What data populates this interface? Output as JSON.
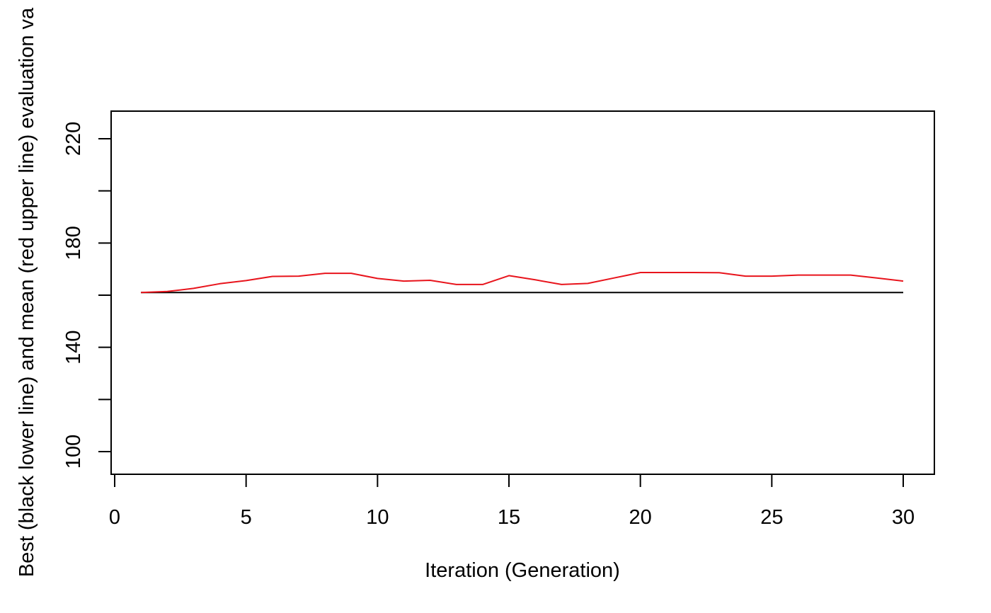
{
  "chart_data": {
    "type": "line",
    "title": "",
    "xlabel": "Iteration (Generation)",
    "ylabel": "Best (black lower line) and mean (red upper line) evaluation va",
    "xlim": [
      0,
      31
    ],
    "ylim": [
      92,
      231
    ],
    "x_ticks": [
      0,
      5,
      10,
      15,
      20,
      25,
      30
    ],
    "x_tick_labels": [
      "0",
      "5",
      "10",
      "15",
      "20",
      "25",
      "30"
    ],
    "y_ticks": [
      100,
      120,
      140,
      160,
      180,
      200,
      220
    ],
    "y_tick_labels": [
      "100",
      "",
      "140",
      "",
      "180",
      "",
      "220"
    ],
    "grid": false,
    "legend": "none",
    "x": [
      1,
      2,
      3,
      4,
      5,
      6,
      7,
      8,
      9,
      10,
      11,
      12,
      13,
      14,
      15,
      16,
      17,
      18,
      19,
      20,
      21,
      22,
      23,
      24,
      25,
      26,
      27,
      28,
      29,
      30
    ],
    "series": [
      {
        "color": "#000000",
        "values": [
          161,
          161,
          161,
          161,
          161,
          161,
          161,
          161,
          161,
          161,
          161,
          161,
          161,
          161,
          161,
          161,
          161,
          161,
          161,
          161,
          161,
          161,
          161,
          161,
          161,
          161,
          161,
          161,
          161,
          161
        ]
      },
      {
        "color": "#e8141c",
        "values": [
          161,
          161.4,
          162.6,
          164.4,
          165.6,
          167.2,
          167.3,
          168.4,
          168.4,
          166.4,
          165.4,
          165.7,
          164.1,
          164.1,
          167.5,
          165.9,
          164.1,
          164.5,
          166.6,
          168.7,
          168.7,
          168.7,
          168.6,
          167.3,
          167.3,
          167.7,
          167.7,
          167.7,
          166.6,
          165.4
        ]
      }
    ]
  }
}
